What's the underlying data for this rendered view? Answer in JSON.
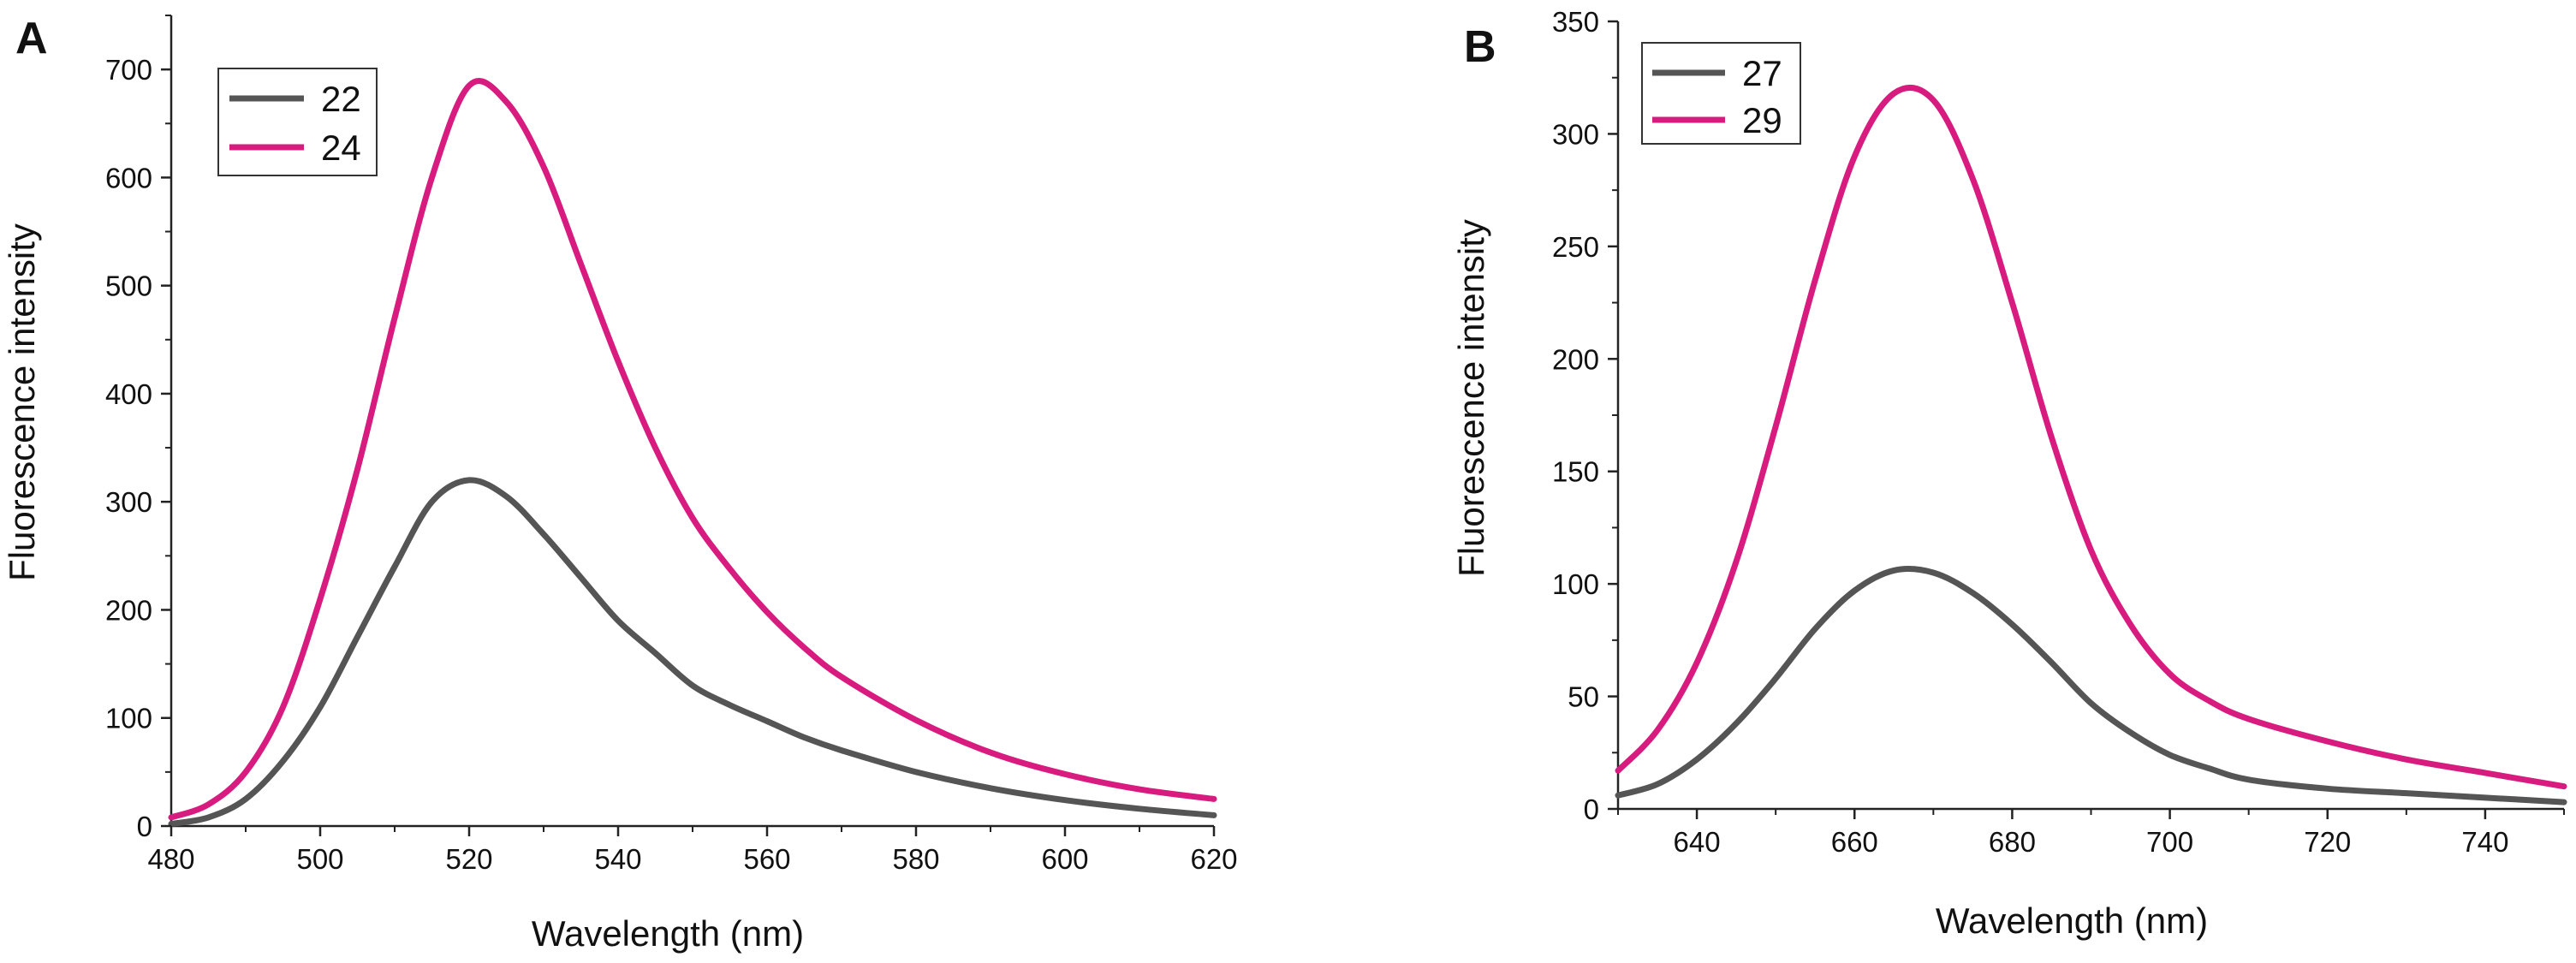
{
  "chart_data": [
    {
      "panel": "A",
      "type": "line",
      "xlabel": "Wavelength (nm)",
      "ylabel": "Fluorescence intensity",
      "xlim": [
        480,
        620
      ],
      "ylim": [
        0,
        750
      ],
      "xticks": [
        480,
        500,
        520,
        540,
        560,
        580,
        600,
        620
      ],
      "yticks": [
        0,
        100,
        200,
        300,
        400,
        500,
        600,
        700
      ],
      "legend_position": "top-left",
      "series": [
        {
          "name": "22",
          "color": "#555555",
          "x": [
            480,
            485,
            490,
            495,
            500,
            505,
            510,
            515,
            520,
            525,
            530,
            535,
            540,
            545,
            550,
            555,
            560,
            565,
            570,
            580,
            590,
            600,
            610,
            620
          ],
          "y": [
            2,
            8,
            25,
            60,
            110,
            175,
            240,
            300,
            320,
            305,
            270,
            230,
            190,
            160,
            130,
            112,
            97,
            82,
            70,
            50,
            35,
            24,
            16,
            10
          ]
        },
        {
          "name": "24",
          "color": "#d81b7f",
          "x": [
            480,
            485,
            490,
            495,
            500,
            505,
            510,
            515,
            520,
            525,
            530,
            535,
            540,
            545,
            550,
            555,
            560,
            565,
            570,
            580,
            590,
            600,
            610,
            620
          ],
          "y": [
            8,
            20,
            50,
            110,
            210,
            330,
            470,
            600,
            685,
            670,
            610,
            520,
            430,
            350,
            285,
            238,
            198,
            165,
            138,
            98,
            68,
            48,
            34,
            25
          ]
        }
      ]
    },
    {
      "panel": "B",
      "type": "line",
      "xlabel": "Wavelength (nm)",
      "ylabel": "Fluorescence intensity",
      "xlim": [
        630,
        750
      ],
      "ylim": [
        0,
        350
      ],
      "xticks": [
        640,
        660,
        680,
        700,
        720,
        740
      ],
      "yticks": [
        0,
        50,
        100,
        150,
        200,
        250,
        300,
        350
      ],
      "legend_position": "top-left",
      "series": [
        {
          "name": "27",
          "color": "#555555",
          "x": [
            630,
            635,
            640,
            645,
            650,
            655,
            660,
            665,
            670,
            675,
            680,
            685,
            690,
            695,
            700,
            705,
            710,
            720,
            730,
            740,
            750
          ],
          "y": [
            6,
            11,
            22,
            38,
            58,
            80,
            97,
            106,
            105,
            96,
            82,
            65,
            47,
            34,
            24,
            18,
            13,
            9,
            7,
            5,
            3
          ]
        },
        {
          "name": "29",
          "color": "#d81b7f",
          "x": [
            630,
            635,
            640,
            645,
            650,
            655,
            660,
            665,
            670,
            675,
            680,
            685,
            690,
            695,
            700,
            705,
            710,
            720,
            730,
            740,
            750
          ],
          "y": [
            17,
            35,
            65,
            110,
            170,
            235,
            290,
            318,
            315,
            280,
            225,
            165,
            115,
            82,
            60,
            48,
            40,
            30,
            22,
            16,
            10
          ]
        }
      ]
    }
  ]
}
